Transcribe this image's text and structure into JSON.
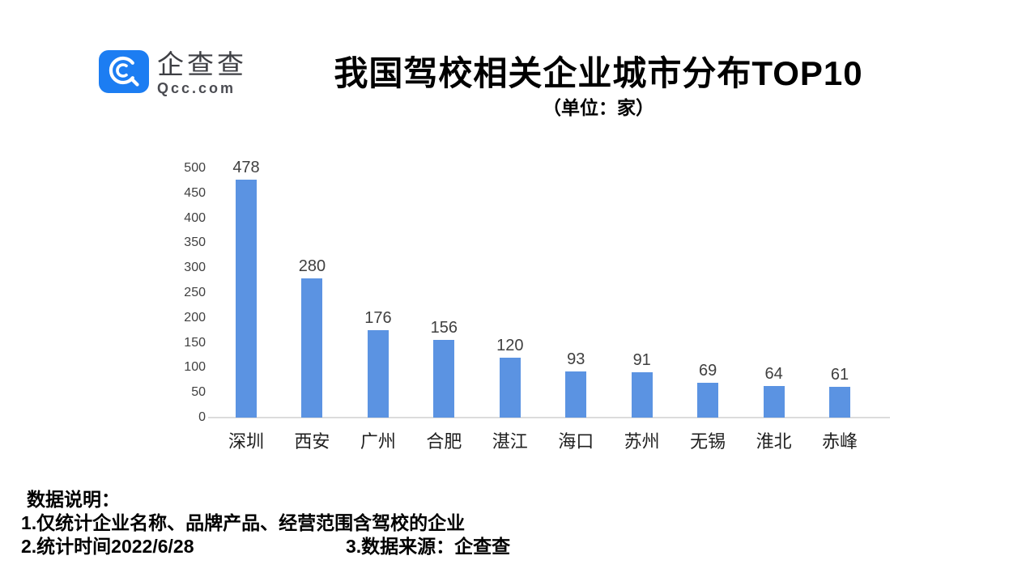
{
  "brand": {
    "logo_cn": "企查查",
    "logo_en": "Qcc.com",
    "logo_color": "#1c7df2"
  },
  "header": {
    "title": "我国驾校相关企业城市分布TOP10",
    "subtitle": "（单位：家）"
  },
  "chart_data": {
    "type": "bar",
    "title": "我国驾校相关企业城市分布TOP10",
    "unit_label": "（单位：家）",
    "categories": [
      "深圳",
      "西安",
      "广州",
      "合肥",
      "湛江",
      "海口",
      "苏州",
      "无锡",
      "淮北",
      "赤峰"
    ],
    "values": [
      478,
      280,
      176,
      156,
      120,
      93,
      91,
      69,
      64,
      61
    ],
    "ylim": [
      0,
      500
    ],
    "ytick_step": 50,
    "yticks": [
      0,
      50,
      100,
      150,
      200,
      250,
      300,
      350,
      400,
      450,
      500
    ],
    "bar_color": "#5b93e2",
    "grid": false,
    "legend": false,
    "value_labels": true,
    "xlabel": "",
    "ylabel": ""
  },
  "notes": {
    "heading": "数据说明：",
    "line1": "1.仅统计企业名称、品牌产品、经营范围含驾校的企业",
    "line2a": "2.统计时间2022/6/28",
    "line2b": "3.数据来源：企查查"
  }
}
